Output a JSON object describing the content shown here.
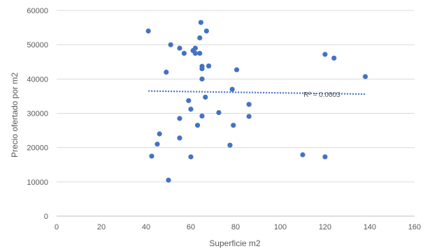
{
  "chart_data": {
    "type": "scatter",
    "title": "",
    "xlabel": "Superficie m2",
    "ylabel": "Precio ofertado por m2",
    "xlim": [
      0,
      160
    ],
    "ylim": [
      0,
      60000
    ],
    "x_ticks": [
      0,
      20,
      40,
      60,
      80,
      100,
      120,
      140,
      160
    ],
    "y_ticks": [
      0,
      10000,
      20000,
      30000,
      40000,
      50000,
      60000
    ],
    "grid": "horizontal",
    "legend": "none",
    "point_color": "#4472c4",
    "trendline_color": "#4472c4",
    "series": [
      {
        "points": [
          [
            41,
            54000
          ],
          [
            42.5,
            17500
          ],
          [
            45,
            21000
          ],
          [
            46,
            24000
          ],
          [
            49,
            42000
          ],
          [
            50,
            10500
          ],
          [
            51,
            50000
          ],
          [
            55,
            49000
          ],
          [
            55,
            28500
          ],
          [
            55,
            22800
          ],
          [
            57,
            47500
          ],
          [
            59,
            33700
          ],
          [
            60,
            31200
          ],
          [
            60,
            17300
          ],
          [
            61,
            48300
          ],
          [
            62,
            47500
          ],
          [
            62,
            49000
          ],
          [
            63,
            26500
          ],
          [
            64,
            47500
          ],
          [
            64,
            52000
          ],
          [
            64.5,
            56500
          ],
          [
            65,
            43700
          ],
          [
            65,
            43000
          ],
          [
            65,
            40000
          ],
          [
            65,
            29200
          ],
          [
            66.5,
            34700
          ],
          [
            67,
            54000
          ],
          [
            68,
            43800
          ],
          [
            72.5,
            30200
          ],
          [
            77.5,
            20700
          ],
          [
            78.5,
            37000
          ],
          [
            79,
            26500
          ],
          [
            80.5,
            42700
          ],
          [
            86,
            32600
          ],
          [
            86,
            29100
          ],
          [
            110,
            17900
          ],
          [
            120,
            47200
          ],
          [
            120,
            17300
          ],
          [
            124,
            46100
          ],
          [
            138,
            40700
          ]
        ]
      }
    ],
    "trendline": {
      "style": "dotted",
      "x": [
        41,
        138
      ],
      "y": [
        36500,
        35600
      ],
      "label": "R² = 0.0003"
    }
  }
}
